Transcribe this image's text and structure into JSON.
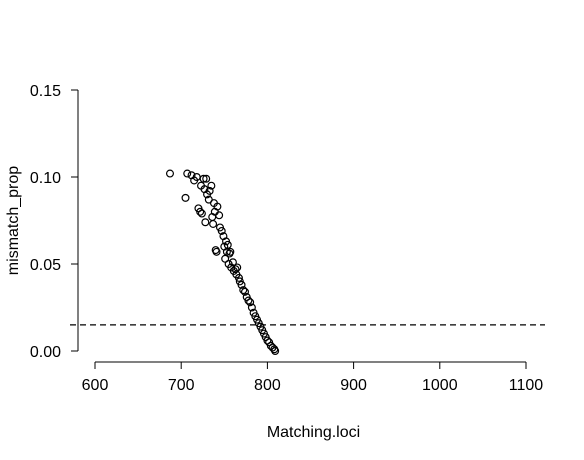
{
  "chart_data": {
    "type": "scatter",
    "title": "",
    "xlabel": "Matching.loci",
    "ylabel": "mismatch_prop",
    "xlim": [
      600,
      1100
    ],
    "ylim": [
      0,
      0.15
    ],
    "x_ticks": [
      "600",
      "700",
      "800",
      "900",
      "1000",
      "1100"
    ],
    "y_ticks": [
      "0.00",
      "0.05",
      "0.10",
      "0.15"
    ],
    "x_tick_values": [
      600,
      700,
      800,
      900,
      1000,
      1100
    ],
    "y_tick_values": [
      0,
      0.05,
      0.1,
      0.15
    ],
    "grid": false,
    "reference_line": {
      "orientation": "horizontal",
      "y": 0.015,
      "style": "dashed"
    },
    "marker": "open-circle",
    "series": [
      {
        "points": [
          [
            687,
            0.102
          ],
          [
            705,
            0.088
          ],
          [
            707,
            0.102
          ],
          [
            712,
            0.101
          ],
          [
            715,
            0.098
          ],
          [
            718,
            0.1
          ],
          [
            720,
            0.082
          ],
          [
            722,
            0.08
          ],
          [
            723,
            0.095
          ],
          [
            724,
            0.079
          ],
          [
            726,
            0.099
          ],
          [
            727,
            0.093
          ],
          [
            728,
            0.074
          ],
          [
            729,
            0.099
          ],
          [
            730,
            0.09
          ],
          [
            732,
            0.087
          ],
          [
            733,
            0.092
          ],
          [
            735,
            0.095
          ],
          [
            736,
            0.077
          ],
          [
            737,
            0.073
          ],
          [
            738,
            0.085
          ],
          [
            739,
            0.08
          ],
          [
            740,
            0.058
          ],
          [
            741,
            0.057
          ],
          [
            742,
            0.083
          ],
          [
            744,
            0.078
          ],
          [
            745,
            0.071
          ],
          [
            747,
            0.069
          ],
          [
            749,
            0.066
          ],
          [
            750,
            0.06
          ],
          [
            751,
            0.053
          ],
          [
            752,
            0.063
          ],
          [
            753,
            0.057
          ],
          [
            754,
            0.061
          ],
          [
            755,
            0.05
          ],
          [
            756,
            0.056
          ],
          [
            757,
            0.057
          ],
          [
            758,
            0.048
          ],
          [
            760,
            0.051
          ],
          [
            761,
            0.046
          ],
          [
            763,
            0.047
          ],
          [
            764,
            0.044
          ],
          [
            765,
            0.048
          ],
          [
            767,
            0.042
          ],
          [
            768,
            0.04
          ],
          [
            770,
            0.038
          ],
          [
            772,
            0.035
          ],
          [
            774,
            0.034
          ],
          [
            776,
            0.031
          ],
          [
            778,
            0.029
          ],
          [
            780,
            0.028
          ],
          [
            782,
            0.025
          ],
          [
            784,
            0.022
          ],
          [
            786,
            0.02
          ],
          [
            788,
            0.018
          ],
          [
            790,
            0.016
          ],
          [
            792,
            0.014
          ],
          [
            794,
            0.012
          ],
          [
            796,
            0.01
          ],
          [
            798,
            0.008
          ],
          [
            800,
            0.006
          ],
          [
            802,
            0.005
          ],
          [
            804,
            0.003
          ],
          [
            806,
            0.002
          ],
          [
            808,
            0.001
          ],
          [
            809,
            0.0
          ]
        ]
      }
    ]
  }
}
